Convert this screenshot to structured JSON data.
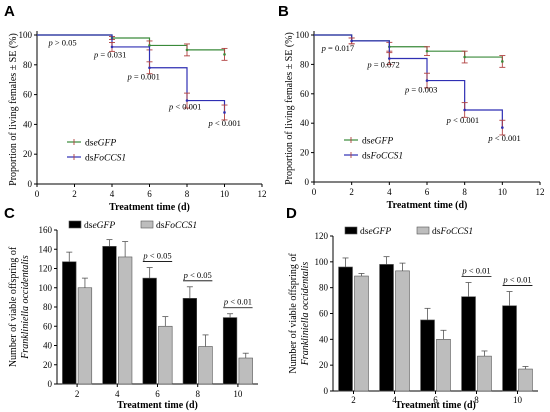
{
  "chart_data": [
    {
      "panel": "A",
      "type": "line",
      "step": true,
      "xlabel": "Treatment time (d)",
      "ylabel": "Proportion of living females ± SE (%)",
      "xlim": [
        0,
        12
      ],
      "ylim": [
        0,
        100
      ],
      "xticks": [
        "0",
        "2",
        "4",
        "6",
        "8",
        "10",
        "12"
      ],
      "yticks": [
        "0",
        "20",
        "40",
        "60",
        "80",
        "100"
      ],
      "legend_placement": "bottom-left",
      "series": [
        {
          "name": "dseGFP",
          "legend_plain": "ds",
          "legend_italic": "eGFP",
          "color": "#3a8a3a",
          "x": [
            0,
            2,
            4,
            6,
            8,
            10
          ],
          "y": [
            100,
            100,
            98,
            93,
            90,
            87
          ],
          "err": [
            0,
            0,
            1,
            3,
            4,
            4
          ]
        },
        {
          "name": "dsFoCCS1",
          "legend_plain": "ds",
          "legend_italic": "FoCCS1",
          "color": "#2f2fb3",
          "x": [
            0,
            2,
            4,
            6,
            8,
            10
          ],
          "y": [
            100,
            100,
            92,
            78,
            56,
            48
          ],
          "err": [
            0,
            0,
            3,
            4,
            5,
            5
          ]
        }
      ],
      "annotations": [
        {
          "text": "p > 0.05",
          "x": 2,
          "y": 93
        },
        {
          "text": "p = 0.031",
          "x": 4,
          "y": 85
        },
        {
          "text": "p = 0.001",
          "x": 6,
          "y": 70
        },
        {
          "text": "p < 0.001",
          "x": 8,
          "y": 50
        },
        {
          "text": "p < 0.001",
          "x": 10,
          "y": 39
        }
      ]
    },
    {
      "panel": "B",
      "type": "line",
      "step": true,
      "xlabel": "Treatment time (d)",
      "ylabel": "Proportion of living females ± SE (%)",
      "xlim": [
        0,
        12
      ],
      "ylim": [
        0,
        100
      ],
      "xticks": [
        "0",
        "2",
        "4",
        "6",
        "8",
        "10",
        "12"
      ],
      "yticks": [
        "0",
        "20",
        "40",
        "60",
        "80",
        "100"
      ],
      "legend_placement": "bottom-left",
      "series": [
        {
          "name": "dseGFP",
          "legend_plain": "ds",
          "legend_italic": "eGFP",
          "color": "#3a8a3a",
          "x": [
            0,
            2,
            4,
            6,
            8,
            10
          ],
          "y": [
            100,
            96,
            92,
            89,
            85,
            82
          ],
          "err": [
            0,
            2,
            3,
            3,
            4,
            4
          ]
        },
        {
          "name": "dsFoCCS1",
          "legend_plain": "ds",
          "legend_italic": "FoCCS1",
          "color": "#2f2fb3",
          "x": [
            0,
            2,
            4,
            6,
            8,
            10
          ],
          "y": [
            100,
            96,
            84,
            69,
            49,
            37
          ],
          "err": [
            0,
            2,
            4,
            5,
            5,
            5
          ]
        }
      ],
      "annotations": [
        {
          "text": "p = 0.017",
          "x": 2,
          "y": 89
        },
        {
          "text": "p = 0.072",
          "x": 4,
          "y": 78
        },
        {
          "text": "p = 0.003",
          "x": 6,
          "y": 61
        },
        {
          "text": "p < 0.001",
          "x": 8,
          "y": 40
        },
        {
          "text": "p < 0.001",
          "x": 10,
          "y": 28
        }
      ]
    },
    {
      "panel": "C",
      "type": "bar",
      "xlabel": "Treatment time (d)",
      "ylabel_line1": "Number of viable offspring of",
      "ylabel_line2": "Frankliniella occidentalis",
      "categories": [
        "2",
        "4",
        "6",
        "8",
        "10"
      ],
      "ylim": [
        0,
        160
      ],
      "yticks": [
        "0",
        "20",
        "40",
        "60",
        "80",
        "100",
        "120",
        "140",
        "160"
      ],
      "legend_placement": "top-left",
      "series": [
        {
          "name": "dseGFP",
          "legend_plain": "ds",
          "legend_italic": "eGFP",
          "color": "#000000",
          "values": [
            127,
            143,
            110,
            89,
            69
          ],
          "err": [
            10,
            7,
            11,
            12,
            4
          ]
        },
        {
          "name": "dsFoCCS1",
          "legend_plain": "ds",
          "legend_italic": "FoCCS1",
          "color": "#bdbdbd",
          "values": [
            100,
            132,
            60,
            39,
            27
          ],
          "err": [
            10,
            16,
            10,
            12,
            5
          ]
        }
      ],
      "significance": [
        {
          "category_index": 2,
          "text": "p < 0.05"
        },
        {
          "category_index": 3,
          "text": "p < 0.05"
        },
        {
          "category_index": 4,
          "text": "p < 0.01"
        }
      ]
    },
    {
      "panel": "D",
      "type": "bar",
      "xlabel": "Treatment time (d)",
      "ylabel_line1": "Number of viable offspring of",
      "ylabel_line2": "Frankliniella occidentalis",
      "categories": [
        "2",
        "4",
        "6",
        "8",
        "10"
      ],
      "ylim": [
        0,
        120
      ],
      "yticks": [
        "0",
        "20",
        "40",
        "60",
        "80",
        "100",
        "120"
      ],
      "legend_placement": "top",
      "series": [
        {
          "name": "dseGFP",
          "legend_plain": "ds",
          "legend_italic": "eGFP",
          "color": "#000000",
          "values": [
            96,
            98,
            55,
            73,
            66
          ],
          "err": [
            7,
            6,
            9,
            11,
            11
          ]
        },
        {
          "name": "dsFoCCS1",
          "legend_plain": "ds",
          "legend_italic": "FoCCS1",
          "color": "#bdbdbd",
          "values": [
            89,
            93,
            40,
            27,
            17
          ],
          "err": [
            2,
            6,
            7,
            4,
            2
          ]
        }
      ],
      "significance": [
        {
          "category_index": 3,
          "text": "p < 0.01"
        },
        {
          "category_index": 4,
          "text": "p < 0.01"
        }
      ]
    }
  ]
}
